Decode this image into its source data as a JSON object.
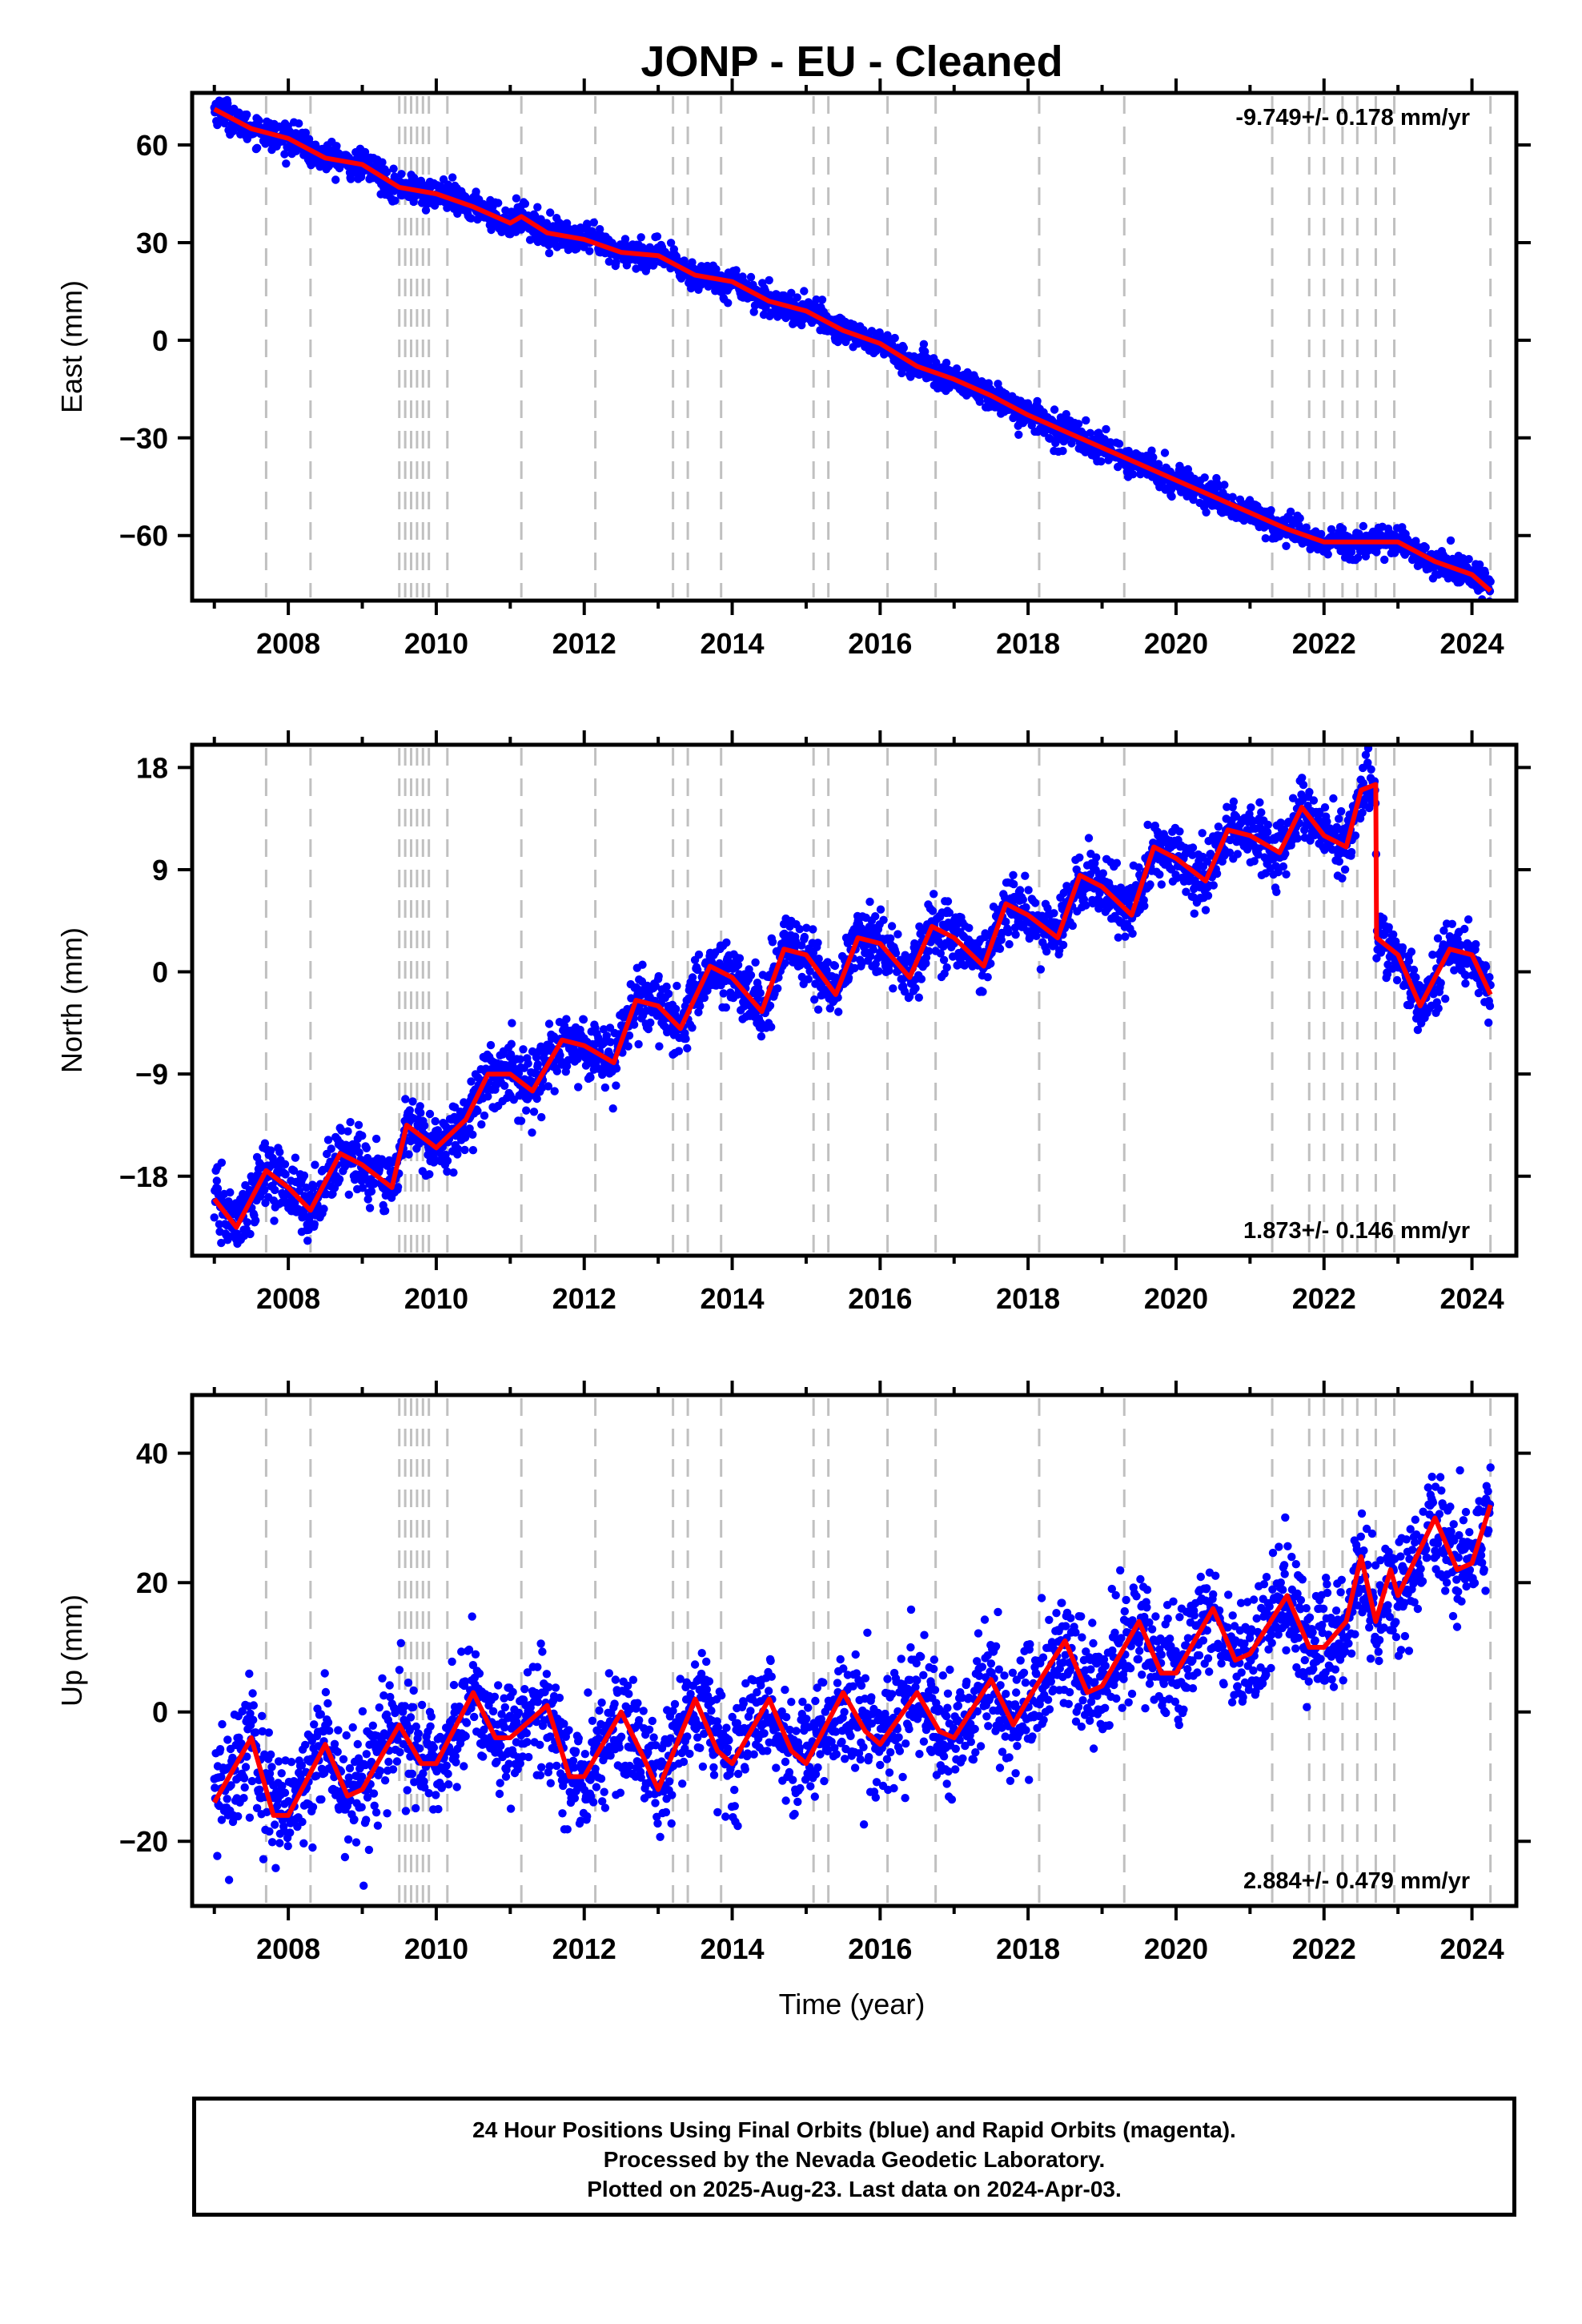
{
  "title": "JONP  - EU - Cleaned",
  "xlabel": "Time (year)",
  "caption": {
    "line1": "24 Hour Positions Using Final Orbits (blue) and Rapid Orbits (magenta).",
    "line2": "Processed by the Nevada Geodetic Laboratory.",
    "line3": "Plotted on 2025-Aug-23. Last data on 2024-Apr-03."
  },
  "colors": {
    "points": "#0000ff",
    "model": "#ff0000",
    "events": "#c0c0c0",
    "axes": "#000000"
  },
  "event_years": [
    2007.7,
    2008.3,
    2009.5,
    2009.58,
    2009.66,
    2009.74,
    2009.82,
    2009.9,
    2010.15,
    2011.15,
    2012.15,
    2013.2,
    2013.4,
    2013.85,
    2015.1,
    2015.3,
    2016.1,
    2016.75,
    2018.15,
    2019.3,
    2021.3,
    2021.8,
    2022.0,
    2022.25,
    2022.45,
    2022.7,
    2022.95,
    2024.25
  ],
  "chart_data": [
    {
      "type": "scatter",
      "component": "east",
      "ylabel": "East (mm)",
      "rate_label": "-9.749+/- 0.178 mm/yr",
      "rate_position": "top-right",
      "xlim": [
        2006.7,
        2024.6
      ],
      "ylim": [
        -80,
        76
      ],
      "yticks": [
        -60,
        -30,
        0,
        30,
        60
      ],
      "xticks": [
        2008,
        2010,
        2012,
        2014,
        2016,
        2018,
        2020,
        2022,
        2024
      ],
      "grid": false,
      "model_x": [
        2007.0,
        2007.5,
        2008.0,
        2008.5,
        2009.0,
        2009.5,
        2010.0,
        2010.5,
        2011.0,
        2011.15,
        2011.5,
        2012.0,
        2012.5,
        2013.0,
        2013.5,
        2014.0,
        2014.5,
        2015.0,
        2015.5,
        2016.0,
        2016.5,
        2017.0,
        2017.5,
        2018.0,
        2018.5,
        2019.0,
        2019.5,
        2020.0,
        2020.5,
        2021.0,
        2021.5,
        2022.0,
        2022.5,
        2023.0,
        2023.5,
        2024.0,
        2024.25
      ],
      "model_y": [
        71,
        65,
        62,
        56,
        54,
        47,
        45,
        41,
        36,
        38,
        33,
        31,
        27,
        26,
        20,
        18,
        12,
        9,
        3,
        -1,
        -8,
        -12,
        -17,
        -23,
        -28,
        -33,
        -38,
        -43,
        -48,
        -53,
        -58,
        -62,
        -62,
        -62,
        -68,
        -72,
        -77
      ],
      "scatter_spread": 2.2,
      "seasonal_amplitude": 2
    },
    {
      "type": "scatter",
      "component": "north",
      "ylabel": "North (mm)",
      "rate_label": "1.873+/- 0.146 mm/yr",
      "rate_position": "bottom-right",
      "xlim": [
        2006.7,
        2024.6
      ],
      "ylim": [
        -25,
        20
      ],
      "yticks": [
        -18,
        -9,
        0,
        9,
        18
      ],
      "xticks": [
        2008,
        2010,
        2012,
        2014,
        2016,
        2018,
        2020,
        2022,
        2024
      ],
      "grid": false,
      "model_x": [
        2007.0,
        2007.3,
        2007.7,
        2008.0,
        2008.3,
        2008.7,
        2009.0,
        2009.4,
        2009.6,
        2010.0,
        2010.4,
        2010.7,
        2011.0,
        2011.3,
        2011.7,
        2012.0,
        2012.4,
        2012.7,
        2013.0,
        2013.3,
        2013.7,
        2014.0,
        2014.4,
        2014.7,
        2015.0,
        2015.4,
        2015.7,
        2016.0,
        2016.4,
        2016.7,
        2017.0,
        2017.4,
        2017.7,
        2018.0,
        2018.4,
        2018.7,
        2019.0,
        2019.4,
        2019.7,
        2020.0,
        2020.4,
        2020.7,
        2021.0,
        2021.4,
        2021.7,
        2022.0,
        2022.3,
        2022.5,
        2022.7,
        2022.71,
        2023.0,
        2023.3,
        2023.7,
        2024.0,
        2024.25
      ],
      "model_y": [
        -20,
        -22.5,
        -17.5,
        -19,
        -21,
        -16,
        -17,
        -19,
        -13.5,
        -15.5,
        -13,
        -9,
        -9,
        -10.5,
        -6,
        -6.5,
        -8,
        -2.5,
        -3,
        -5,
        0.5,
        -0.5,
        -3.5,
        2,
        1.5,
        -2,
        3,
        2.5,
        -0.5,
        4,
        3,
        0.5,
        6,
        5,
        3,
        8.5,
        7.5,
        5,
        11,
        10,
        8,
        12.5,
        12,
        10.5,
        14.5,
        12,
        11,
        16,
        16.5,
        3,
        1.5,
        -3,
        2,
        1.5,
        -2
      ],
      "scatter_spread": 1.4,
      "seasonal_amplitude": 0
    },
    {
      "type": "scatter",
      "component": "up",
      "ylabel": "Up (mm)",
      "rate_label": "2.884+/- 0.479 mm/yr",
      "rate_position": "bottom-right",
      "xlim": [
        2006.7,
        2024.6
      ],
      "ylim": [
        -30,
        49
      ],
      "yticks": [
        -20,
        0,
        20,
        40
      ],
      "xticks": [
        2008,
        2010,
        2012,
        2014,
        2016,
        2018,
        2020,
        2022,
        2024
      ],
      "grid": false,
      "model_x": [
        2007.0,
        2007.5,
        2007.8,
        2008.0,
        2008.5,
        2008.8,
        2009.0,
        2009.5,
        2009.8,
        2010.0,
        2010.5,
        2010.8,
        2011.0,
        2011.5,
        2011.8,
        2012.0,
        2012.5,
        2012.8,
        2013.0,
        2013.5,
        2013.8,
        2014.0,
        2014.5,
        2014.8,
        2015.0,
        2015.5,
        2015.8,
        2016.0,
        2016.5,
        2016.8,
        2017.0,
        2017.5,
        2017.8,
        2018.0,
        2018.5,
        2018.8,
        2019.0,
        2019.5,
        2019.8,
        2020.0,
        2020.5,
        2020.8,
        2021.0,
        2021.5,
        2021.8,
        2022.0,
        2022.3,
        2022.5,
        2022.7,
        2022.9,
        2023.0,
        2023.5,
        2023.8,
        2024.0,
        2024.25
      ],
      "model_y": [
        -14,
        -4,
        -16,
        -16,
        -5,
        -13,
        -12,
        -2,
        -8,
        -8,
        3,
        -4,
        -4,
        1,
        -10,
        -10,
        0,
        -7,
        -12,
        2,
        -6,
        -8,
        2,
        -6,
        -8,
        3,
        -3,
        -5,
        3,
        -3,
        -4,
        5,
        -2,
        2,
        11,
        3,
        4,
        14,
        6,
        6,
        16,
        8,
        9,
        18,
        10,
        10,
        14,
        24,
        14,
        22,
        18,
        30,
        22,
        23,
        32
      ],
      "scatter_spread": 4.5,
      "seasonal_amplitude": 0
    }
  ]
}
